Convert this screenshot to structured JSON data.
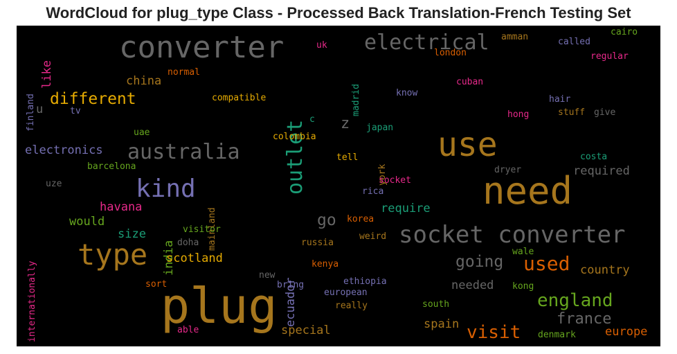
{
  "title": "WordCloud for plug_type Class - Processed Back Translation-French Testing Set",
  "colors": {
    "green": "#1b9e77",
    "orange": "#d95f02",
    "purple": "#7570b3",
    "pink": "#e7298a",
    "lime": "#66a61e",
    "gold": "#e6ab02",
    "brown": "#a6761d",
    "gray": "#666666"
  },
  "words": [
    {
      "text": "converter",
      "color": "#666666"
    },
    {
      "text": "electrical",
      "color": "#666666"
    },
    {
      "text": "outlet",
      "color": "#1b9e77"
    },
    {
      "text": "different",
      "color": "#e6ab02"
    },
    {
      "text": "china",
      "color": "#a6761d"
    },
    {
      "text": "australia",
      "color": "#666666"
    },
    {
      "text": "kind",
      "color": "#7570b3"
    },
    {
      "text": "type",
      "color": "#a6761d"
    },
    {
      "text": "use",
      "color": "#a6761d"
    },
    {
      "text": "need",
      "color": "#a6761d"
    },
    {
      "text": "socket converter",
      "color": "#666666"
    },
    {
      "text": "plug",
      "color": "#a6761d"
    },
    {
      "text": "electronics",
      "color": "#7570b3"
    },
    {
      "text": "havana",
      "color": "#e7298a"
    },
    {
      "text": "would",
      "color": "#66a61e"
    },
    {
      "text": "size",
      "color": "#1b9e77"
    },
    {
      "text": "india",
      "color": "#66a61e"
    },
    {
      "text": "scotland",
      "color": "#e6ab02"
    },
    {
      "text": "go",
      "color": "#666666"
    },
    {
      "text": "going",
      "color": "#666666"
    },
    {
      "text": "used",
      "color": "#d95f02"
    },
    {
      "text": "country",
      "color": "#a6761d"
    },
    {
      "text": "england",
      "color": "#66a61e"
    },
    {
      "text": "france",
      "color": "#666666"
    },
    {
      "text": "visit",
      "color": "#d95f02"
    },
    {
      "text": "special",
      "color": "#a6761d"
    },
    {
      "text": "spain",
      "color": "#a6761d"
    },
    {
      "text": "europe",
      "color": "#d95f02"
    },
    {
      "text": "require",
      "color": "#1b9e77"
    },
    {
      "text": "required",
      "color": "#666666"
    },
    {
      "text": "needed",
      "color": "#666666"
    },
    {
      "text": "ecuador",
      "color": "#7570b3"
    },
    {
      "text": "z",
      "color": "#666666"
    },
    {
      "text": "like",
      "color": "#e7298a"
    },
    {
      "text": "u",
      "color": "#666666"
    },
    {
      "text": "uk",
      "color": "#e7298a"
    },
    {
      "text": "normal",
      "color": "#d95f02"
    },
    {
      "text": "compatible",
      "color": "#e6ab02"
    },
    {
      "text": "madrid",
      "color": "#1b9e77"
    },
    {
      "text": "london",
      "color": "#d95f02"
    },
    {
      "text": "amman",
      "color": "#a6761d"
    },
    {
      "text": "called",
      "color": "#7570b3"
    },
    {
      "text": "cairo",
      "color": "#66a61e"
    },
    {
      "text": "regular",
      "color": "#e7298a"
    },
    {
      "text": "cuban",
      "color": "#e7298a"
    },
    {
      "text": "know",
      "color": "#7570b3"
    },
    {
      "text": "hair",
      "color": "#7570b3"
    },
    {
      "text": "hong",
      "color": "#e7298a"
    },
    {
      "text": "stuff",
      "color": "#a6761d"
    },
    {
      "text": "give",
      "color": "#666666"
    },
    {
      "text": "finland",
      "color": "#7570b3"
    },
    {
      "text": "tv",
      "color": "#7570b3"
    },
    {
      "text": "uae",
      "color": "#66a61e"
    },
    {
      "text": "colombia",
      "color": "#e6ab02"
    },
    {
      "text": "c",
      "color": "#1b9e77"
    },
    {
      "text": "japan",
      "color": "#1b9e77"
    },
    {
      "text": "barcelona",
      "color": "#66a61e"
    },
    {
      "text": "uze",
      "color": "#666666"
    },
    {
      "text": "internationally",
      "color": "#e7298a"
    },
    {
      "text": "mainland",
      "color": "#a6761d"
    },
    {
      "text": "tell",
      "color": "#e6ab02"
    },
    {
      "text": "york",
      "color": "#a6761d"
    },
    {
      "text": "costa",
      "color": "#1b9e77"
    },
    {
      "text": "dryer",
      "color": "#666666"
    },
    {
      "text": "socket",
      "color": "#e7298a"
    },
    {
      "text": "rica",
      "color": "#7570b3"
    },
    {
      "text": "visitor",
      "color": "#66a61e"
    },
    {
      "text": "doha",
      "color": "#666666"
    },
    {
      "text": "korea",
      "color": "#d95f02"
    },
    {
      "text": "russia",
      "color": "#a6761d"
    },
    {
      "text": "weird",
      "color": "#a6761d"
    },
    {
      "text": "wale",
      "color": "#66a61e"
    },
    {
      "text": "kenya",
      "color": "#d95f02"
    },
    {
      "text": "new",
      "color": "#666666"
    },
    {
      "text": "sort",
      "color": "#d95f02"
    },
    {
      "text": "bring",
      "color": "#7570b3"
    },
    {
      "text": "ethiopia",
      "color": "#7570b3"
    },
    {
      "text": "european",
      "color": "#7570b3"
    },
    {
      "text": "kong",
      "color": "#66a61e"
    },
    {
      "text": "south",
      "color": "#66a61e"
    },
    {
      "text": "really",
      "color": "#a6761d"
    },
    {
      "text": "able",
      "color": "#e7298a"
    },
    {
      "text": "denmark",
      "color": "#66a61e"
    }
  ]
}
